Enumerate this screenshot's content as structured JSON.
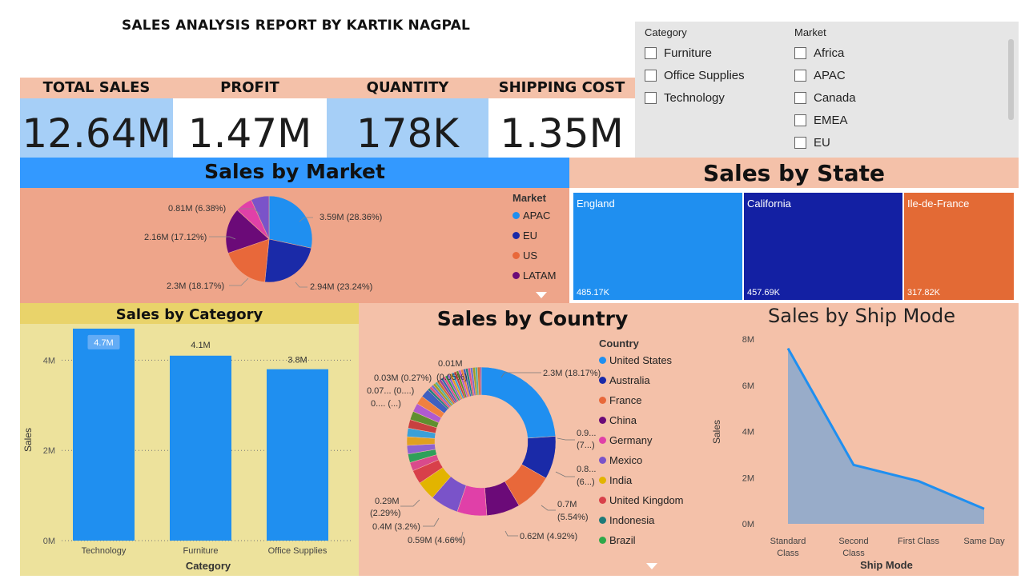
{
  "report": {
    "title": "SALES ANALYSIS REPORT BY KARTIK NAGPAL"
  },
  "kpis": [
    {
      "label": "TOTAL SALES",
      "value": "12.64M",
      "bg": "#a6cff7"
    },
    {
      "label": "PROFIT",
      "value": "1.47M",
      "bg": "#ffffff"
    },
    {
      "label": "QUANTITY",
      "value": "178K",
      "bg": "#a6cff7"
    },
    {
      "label": "SHIPPING COST",
      "value": "1.35M",
      "bg": "#ffffff"
    }
  ],
  "slicers": {
    "category": {
      "title": "Category",
      "items": [
        "Furniture",
        "Office Supplies",
        "Technology"
      ]
    },
    "market": {
      "title": "Market",
      "items": [
        "Africa",
        "APAC",
        "Canada",
        "EMEA",
        "EU"
      ]
    }
  },
  "icons": {
    "scroll_down": "chevron-down-icon",
    "legend_marker": "circle-icon"
  },
  "chart_data": [
    {
      "id": "market",
      "type": "pie",
      "title": "Sales by Market",
      "legend_title": "Market",
      "legend_visible": [
        "APAC",
        "EU",
        "US",
        "LATAM"
      ],
      "slices": [
        {
          "name": "APAC",
          "value": 3.59,
          "label": "3.59M (28.36%)",
          "color": "#1f8ff0"
        },
        {
          "name": "EU",
          "value": 2.94,
          "label": "2.94M (23.24%)",
          "color": "#1a2aa8"
        },
        {
          "name": "US",
          "value": 2.3,
          "label": "2.3M (18.17%)",
          "color": "#e8683a"
        },
        {
          "name": "LATAM",
          "value": 2.16,
          "label": "2.16M (17.12%)",
          "color": "#6b0a78"
        },
        {
          "name": "",
          "value": 0.81,
          "label": "0.81M (6.38%)",
          "color": "#e040a8"
        },
        {
          "name": "",
          "value": 0.86,
          "label": "",
          "color": "#7a53c9"
        }
      ]
    },
    {
      "id": "state",
      "type": "treemap",
      "title": "Sales by State",
      "items": [
        {
          "name": "England",
          "value_label": "485.17K",
          "value": 485.17,
          "color": "#1f8ff0"
        },
        {
          "name": "California",
          "value_label": "457.69K",
          "value": 457.69,
          "color": "#1320a3"
        },
        {
          "name": "Ile-de-France",
          "value_label": "317.82K",
          "value": 317.82,
          "color": "#e36a35"
        }
      ]
    },
    {
      "id": "category",
      "type": "bar",
      "title": "Sales by Category",
      "xlabel": "Category",
      "ylabel": "Sales",
      "categories": [
        "Technology",
        "Furniture",
        "Office Supplies"
      ],
      "values": [
        4.7,
        4.1,
        3.8
      ],
      "value_labels": [
        "4.7M",
        "4.1M",
        "3.8M"
      ],
      "yticks": [
        "0M",
        "2M",
        "4M"
      ],
      "ytick_values": [
        0,
        2,
        4
      ],
      "ylim": [
        0,
        5
      ],
      "color": "#1f8ff0"
    },
    {
      "id": "country",
      "type": "pie",
      "title": "Sales by Country",
      "legend_title": "Country",
      "legend": [
        {
          "name": "United States",
          "color": "#1f8ff0"
        },
        {
          "name": "Australia",
          "color": "#1a2aa8"
        },
        {
          "name": "France",
          "color": "#e8683a"
        },
        {
          "name": "China",
          "color": "#6b0a78"
        },
        {
          "name": "Germany",
          "color": "#e040a8"
        },
        {
          "name": "Mexico",
          "color": "#7a53c9"
        },
        {
          "name": "India",
          "color": "#e2b400"
        },
        {
          "name": "United Kingdom",
          "color": "#d8404a"
        },
        {
          "name": "Indonesia",
          "color": "#1e7a78"
        },
        {
          "name": "Brazil",
          "color": "#2fa84a"
        }
      ],
      "slices": [
        2.3,
        0.9,
        0.8,
        0.7,
        0.62,
        0.59,
        0.4,
        0.29
      ],
      "labels": [
        "2.3M (18.17%)",
        "0.9...",
        "(7...)",
        "0.8...",
        "(6...)",
        "0.7M",
        "(5.54%)",
        "0.62M (4.92%)",
        "0.59M (4.66%)",
        "0.4M (3.2%)",
        "0.29M",
        "(2.29%)",
        "0.... (...)",
        "0.07... (0....)",
        "0.03M (0.27%)",
        "0.01M",
        "(0.05%)"
      ]
    },
    {
      "id": "shipmode",
      "type": "area",
      "title": "Sales by Ship Mode",
      "xlabel": "Ship Mode",
      "ylabel": "Sales",
      "categories": [
        "Standard Class",
        "Second Class",
        "First Class",
        "Same Day"
      ],
      "values": [
        7.6,
        2.55,
        1.85,
        0.65
      ],
      "yticks": [
        "0M",
        "2M",
        "4M",
        "6M",
        "8M"
      ],
      "ytick_values": [
        0,
        2,
        4,
        6,
        8
      ],
      "ylim": [
        0,
        8
      ]
    }
  ]
}
